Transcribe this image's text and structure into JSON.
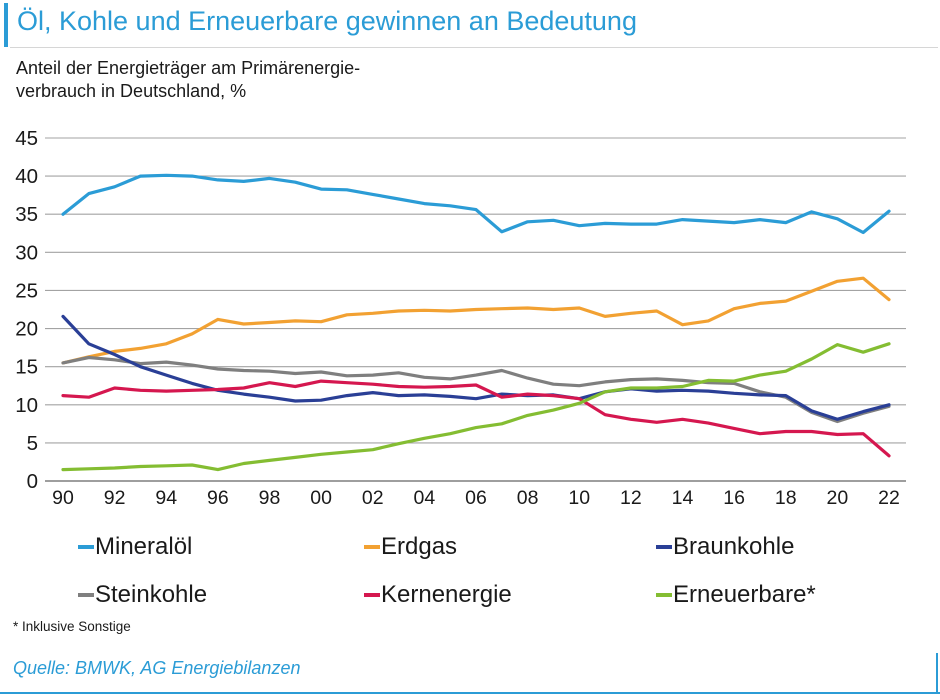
{
  "header": {
    "title": "Öl, Kohle und Erneuerbare gewinnen an Bedeutung",
    "subtitle_line1": "Anteil der Energieträger am Primärenergie-",
    "subtitle_line2": "verbrauch in Deutschland, %"
  },
  "footer": {
    "footnote": "* Inklusive Sonstige",
    "source": "Quelle: BMWK, AG Energiebilanzen"
  },
  "colors": {
    "accent": "#2b9cd6",
    "text": "#1a1a1a",
    "grid": "#a3a3a3",
    "axis": "#7f7f7f",
    "title_rule": "#d6d6d6"
  },
  "legend": [
    {
      "label": "Mineralöl",
      "color": "#2b9cd6"
    },
    {
      "label": "Erdgas",
      "color": "#f2a132"
    },
    {
      "label": "Braunkohle",
      "color": "#2a3f96"
    },
    {
      "label": "Steinkohle",
      "color": "#7f7f7f"
    },
    {
      "label": "Kernenergie",
      "color": "#d5174f"
    },
    {
      "label": "Erneuerbare*",
      "color": "#84bd32"
    }
  ],
  "chart_data": {
    "type": "line",
    "title": "Anteil der Energieträger am Primärenergieverbrauch in Deutschland, %",
    "x_tick_labels": [
      "90",
      "92",
      "94",
      "96",
      "98",
      "00",
      "02",
      "04",
      "06",
      "08",
      "10",
      "12",
      "14",
      "16",
      "18",
      "20",
      "22"
    ],
    "y_tick_labels": [
      "0",
      "5",
      "10",
      "15",
      "20",
      "25",
      "30",
      "35",
      "40",
      "45"
    ],
    "ylim": [
      0,
      45
    ],
    "ytick_step": 5,
    "grid": true,
    "legend_position": "bottom",
    "series": [
      {
        "name": "Mineralöl",
        "color": "#2b9cd6",
        "values": [
          35.0,
          37.7,
          38.6,
          40.0,
          40.1,
          40.0,
          39.5,
          39.3,
          39.7,
          39.2,
          38.3,
          38.2,
          37.6,
          37.0,
          36.4,
          36.1,
          35.6,
          32.7,
          34.0,
          34.2,
          33.5,
          33.8,
          33.7,
          33.7,
          34.3,
          34.1,
          33.9,
          34.3,
          33.9,
          35.3,
          34.4,
          32.6,
          35.4
        ]
      },
      {
        "name": "Erdgas",
        "color": "#f2a132",
        "values": [
          15.5,
          16.3,
          17.0,
          17.4,
          18.0,
          19.3,
          21.2,
          20.6,
          20.8,
          21.0,
          20.9,
          21.8,
          22.0,
          22.3,
          22.4,
          22.3,
          22.5,
          22.6,
          22.7,
          22.5,
          22.7,
          21.6,
          22.0,
          22.3,
          20.5,
          21.0,
          22.6,
          23.3,
          23.6,
          24.9,
          26.2,
          26.6,
          23.8
        ]
      },
      {
        "name": "Steinkohle",
        "color": "#7f7f7f",
        "values": [
          15.5,
          16.2,
          15.9,
          15.4,
          15.6,
          15.2,
          14.7,
          14.5,
          14.4,
          14.1,
          14.3,
          13.8,
          13.9,
          14.2,
          13.6,
          13.4,
          13.9,
          14.5,
          13.5,
          12.7,
          12.5,
          13.0,
          13.3,
          13.4,
          13.2,
          12.9,
          12.8,
          11.7,
          11.0,
          9.0,
          7.8,
          8.9,
          9.8
        ]
      },
      {
        "name": "Braunkohle",
        "color": "#2a3f96",
        "values": [
          21.6,
          18.0,
          16.6,
          15.0,
          13.9,
          12.8,
          11.9,
          11.4,
          11.0,
          10.5,
          10.6,
          11.2,
          11.6,
          11.2,
          11.3,
          11.1,
          10.8,
          11.4,
          11.2,
          11.3,
          10.8,
          11.7,
          12.1,
          11.8,
          11.9,
          11.8,
          11.5,
          11.3,
          11.2,
          9.2,
          8.1,
          9.1,
          10.0
        ]
      },
      {
        "name": "Kernenergie",
        "color": "#d5174f",
        "values": [
          11.2,
          11.0,
          12.2,
          11.9,
          11.8,
          11.9,
          12.0,
          12.2,
          12.9,
          12.4,
          13.1,
          12.9,
          12.7,
          12.4,
          12.3,
          12.4,
          12.6,
          11.0,
          11.4,
          11.2,
          10.8,
          8.7,
          8.1,
          7.7,
          8.1,
          7.6,
          6.9,
          6.2,
          6.5,
          6.5,
          6.1,
          6.2,
          3.3
        ]
      },
      {
        "name": "Erneuerbare*",
        "color": "#84bd32",
        "values": [
          1.5,
          1.6,
          1.7,
          1.9,
          2.0,
          2.1,
          1.5,
          2.3,
          2.7,
          3.1,
          3.5,
          3.8,
          4.1,
          4.9,
          5.6,
          6.2,
          7.0,
          7.5,
          8.6,
          9.3,
          10.2,
          11.7,
          12.2,
          12.2,
          12.4,
          13.2,
          13.1,
          13.9,
          14.4,
          16.0,
          17.9,
          16.9,
          18.0
        ]
      }
    ]
  }
}
